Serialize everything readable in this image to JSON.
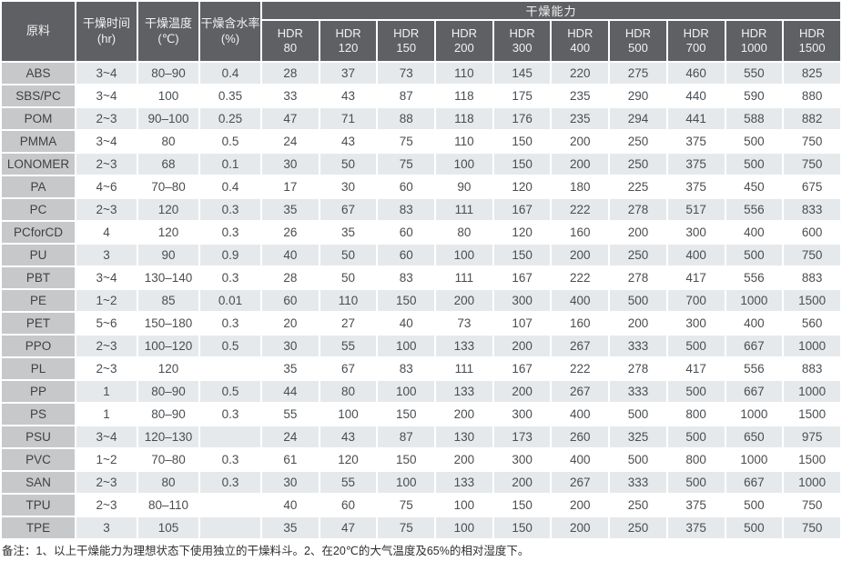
{
  "page": {
    "note": "备注：1、以上干燥能力为理想状态下使用独立的干燥料斗。2、在20℃的大气温度及65%的相对湿度下。"
  },
  "colors": {
    "header_bg": "#5e6063",
    "header_text": "#f2f2f2",
    "material_col_bg": "#c6c8ca",
    "row_shaded_bg": "#e6e9eb",
    "row_plain_bg": "#ffffff",
    "body_text": "#4a4d50",
    "grid_gap": "#ffffff"
  },
  "table": {
    "column_headers": {
      "material": "原料",
      "time": {
        "l1": "干燥时间",
        "l2": "(hr)"
      },
      "temperature": {
        "l1": "干燥温度",
        "l2": "(℃)"
      },
      "moisture": {
        "l1": "干燥含水率",
        "l2": "(%)"
      },
      "capacity_group": "干燥能力"
    },
    "hdr_columns": [
      {
        "l1": "HDR",
        "l2": "80"
      },
      {
        "l1": "HDR",
        "l2": "120"
      },
      {
        "l1": "HDR",
        "l2": "150"
      },
      {
        "l1": "HDR",
        "l2": "200"
      },
      {
        "l1": "HDR",
        "l2": "300"
      },
      {
        "l1": "HDR",
        "l2": "400"
      },
      {
        "l1": "HDR",
        "l2": "500"
      },
      {
        "l1": "HDR",
        "l2": "700"
      },
      {
        "l1": "HDR",
        "l2": "1000"
      },
      {
        "l1": "HDR",
        "l2": "1500"
      }
    ],
    "rows": [
      {
        "material": "ABS",
        "time_hr": "3~4",
        "temp_c": "80–90",
        "moisture_pct": "0.4",
        "capacities": [
          28,
          37,
          73,
          110,
          145,
          220,
          275,
          460,
          550,
          825
        ]
      },
      {
        "material": "SBS/PC",
        "time_hr": "3~4",
        "temp_c": "100",
        "moisture_pct": "0.35",
        "capacities": [
          33,
          43,
          87,
          118,
          175,
          235,
          290,
          440,
          590,
          880
        ]
      },
      {
        "material": "POM",
        "time_hr": "2~3",
        "temp_c": "90–100",
        "moisture_pct": "0.25",
        "capacities": [
          47,
          71,
          88,
          118,
          176,
          235,
          294,
          441,
          588,
          882
        ]
      },
      {
        "material": "PMMA",
        "time_hr": "3~4",
        "temp_c": "80",
        "moisture_pct": "0.5",
        "capacities": [
          24,
          43,
          75,
          110,
          150,
          200,
          250,
          375,
          500,
          750
        ]
      },
      {
        "material": "LONOMER",
        "time_hr": "2~3",
        "temp_c": "68",
        "moisture_pct": "0.1",
        "capacities": [
          30,
          50,
          75,
          100,
          150,
          200,
          250,
          375,
          500,
          750
        ]
      },
      {
        "material": "PA",
        "time_hr": "4~6",
        "temp_c": "70–80",
        "moisture_pct": "0.4",
        "capacities": [
          17,
          30,
          60,
          90,
          120,
          180,
          225,
          375,
          450,
          675
        ]
      },
      {
        "material": "PC",
        "time_hr": "2~3",
        "temp_c": "120",
        "moisture_pct": "0.3",
        "capacities": [
          35,
          67,
          83,
          111,
          167,
          222,
          278,
          517,
          556,
          833
        ]
      },
      {
        "material": "PCforCD",
        "time_hr": "4",
        "temp_c": "120",
        "moisture_pct": "0.3",
        "capacities": [
          26,
          35,
          60,
          80,
          120,
          160,
          200,
          300,
          400,
          600
        ]
      },
      {
        "material": "PU",
        "time_hr": "3",
        "temp_c": "90",
        "moisture_pct": "0.9",
        "capacities": [
          40,
          50,
          60,
          100,
          150,
          200,
          250,
          400,
          500,
          750
        ]
      },
      {
        "material": "PBT",
        "time_hr": "3~4",
        "temp_c": "130–140",
        "moisture_pct": "0.3",
        "capacities": [
          28,
          50,
          83,
          111,
          167,
          222,
          278,
          417,
          556,
          883
        ]
      },
      {
        "material": "PE",
        "time_hr": "1~2",
        "temp_c": "85",
        "moisture_pct": "0.01",
        "capacities": [
          60,
          110,
          150,
          200,
          300,
          400,
          500,
          700,
          1000,
          1500
        ]
      },
      {
        "material": "PET",
        "time_hr": "5~6",
        "temp_c": "150–180",
        "moisture_pct": "0.3",
        "capacities": [
          20,
          27,
          40,
          73,
          107,
          160,
          200,
          300,
          400,
          560
        ]
      },
      {
        "material": "PPO",
        "time_hr": "2~3",
        "temp_c": "100–120",
        "moisture_pct": "0.5",
        "capacities": [
          30,
          55,
          100,
          133,
          200,
          267,
          333,
          500,
          667,
          1000
        ]
      },
      {
        "material": "PL",
        "time_hr": "2~3",
        "temp_c": "120",
        "moisture_pct": "",
        "capacities": [
          35,
          67,
          83,
          111,
          167,
          222,
          278,
          417,
          556,
          883
        ]
      },
      {
        "material": "PP",
        "time_hr": "1",
        "temp_c": "80–90",
        "moisture_pct": "0.5",
        "capacities": [
          44,
          80,
          100,
          133,
          200,
          267,
          333,
          500,
          667,
          1000
        ]
      },
      {
        "material": "PS",
        "time_hr": "1",
        "temp_c": "80–90",
        "moisture_pct": "0.3",
        "capacities": [
          55,
          100,
          150,
          200,
          300,
          400,
          500,
          800,
          1000,
          1500
        ]
      },
      {
        "material": "PSU",
        "time_hr": "3~4",
        "temp_c": "120–130",
        "moisture_pct": "",
        "capacities": [
          24,
          43,
          87,
          130,
          173,
          260,
          325,
          500,
          650,
          975
        ]
      },
      {
        "material": "PVC",
        "time_hr": "1~2",
        "temp_c": "70–80",
        "moisture_pct": "0.3",
        "capacities": [
          61,
          120,
          150,
          200,
          300,
          400,
          500,
          800,
          1000,
          1500
        ]
      },
      {
        "material": "SAN",
        "time_hr": "2~3",
        "temp_c": "80",
        "moisture_pct": "0.3",
        "capacities": [
          30,
          55,
          100,
          133,
          200,
          267,
          333,
          500,
          667,
          1000
        ]
      },
      {
        "material": "TPU",
        "time_hr": "2~3",
        "temp_c": "80–110",
        "moisture_pct": "",
        "capacities": [
          40,
          60,
          75,
          100,
          150,
          200,
          250,
          375,
          500,
          750
        ]
      },
      {
        "material": "TPE",
        "time_hr": "3",
        "temp_c": "105",
        "moisture_pct": "",
        "capacities": [
          35,
          47,
          75,
          100,
          150,
          200,
          250,
          375,
          500,
          750
        ]
      }
    ]
  }
}
